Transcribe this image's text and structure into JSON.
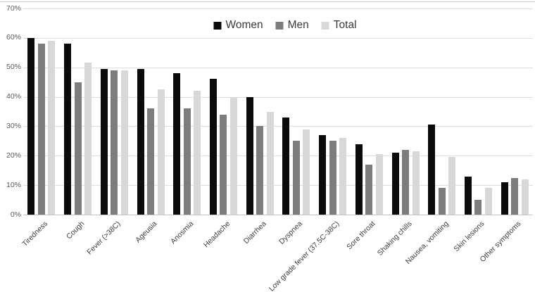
{
  "chart_data": {
    "type": "bar",
    "title": "",
    "xlabel": "",
    "ylabel": "",
    "ylim": [
      0,
      70
    ],
    "y_tick_step": 10,
    "y_tick_labels": [
      "0%",
      "10%",
      "20%",
      "30%",
      "40%",
      "50%",
      "60%",
      "70%"
    ],
    "grid": true,
    "legend_position": "top-center",
    "categories": [
      "Tiredness",
      "Cough",
      "Fever (>38C)",
      "Ageusia",
      "Anosmia",
      "Headache",
      "Diarrhea",
      "Dyspnea",
      "Low grade fever (37.5C-38C)",
      "Sore throat",
      "Shaking chills",
      "Nausea, vomiting",
      "Skin lesions",
      "Other symptoms"
    ],
    "series": [
      {
        "name": "Women",
        "color": "#0b0b0b",
        "values": [
          60,
          58,
          49.5,
          49.5,
          48,
          46,
          40,
          33,
          27,
          24,
          21,
          30.5,
          13,
          11
        ]
      },
      {
        "name": "Men",
        "color": "#7d7d7d",
        "values": [
          58,
          45,
          49,
          36,
          36,
          34,
          30,
          25,
          25,
          17,
          22,
          9,
          5,
          12.5
        ]
      },
      {
        "name": "Total",
        "color": "#d8d8d8",
        "values": [
          59,
          51.5,
          49,
          42.5,
          42,
          40,
          35,
          29,
          26,
          20.5,
          21.5,
          19.5,
          9,
          12
        ]
      }
    ]
  },
  "colors": {
    "gridline": "#dedede",
    "axis_line": "#c4c4c4",
    "y_tick_text": "#595959",
    "x_tick_text": "#404040",
    "legend_text": "#3a3a3a"
  }
}
